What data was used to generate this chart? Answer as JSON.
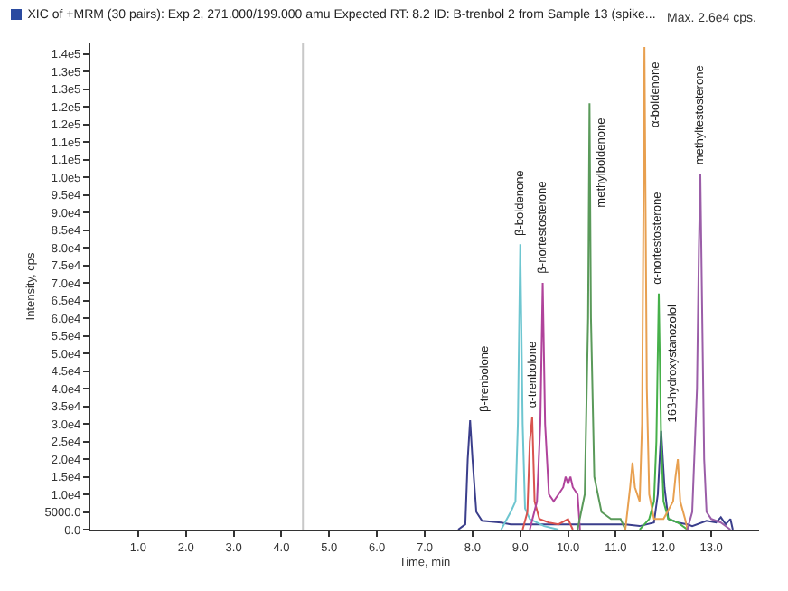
{
  "chart_data": {
    "type": "line",
    "title": "XIC of +MRM (30 pairs): Exp 2, 271.000/199.000 amu Expected RT: 8.2 ID: B-trenbol 2 from Sample 13 (spike...",
    "xlabel": "Time, min",
    "ylabel": "Intensity, cps",
    "xlim": [
      0,
      14
    ],
    "ylim": [
      0,
      138000
    ],
    "xticks": [
      {
        "value": 1,
        "label": "1.0"
      },
      {
        "value": 2,
        "label": "2.0"
      },
      {
        "value": 3,
        "label": "3.0"
      },
      {
        "value": 4,
        "label": "4.0"
      },
      {
        "value": 5,
        "label": "5.0"
      },
      {
        "value": 6,
        "label": "6.0"
      },
      {
        "value": 7,
        "label": "7.0"
      },
      {
        "value": 8,
        "label": "8.0"
      },
      {
        "value": 9,
        "label": "9.0"
      },
      {
        "value": 10,
        "label": "10.0"
      },
      {
        "value": 11,
        "label": "11.0"
      },
      {
        "value": 12,
        "label": "12.0"
      },
      {
        "value": 13,
        "label": "13.0"
      }
    ],
    "yticks": [
      {
        "value": 0,
        "label": "0.0"
      },
      {
        "value": 5000,
        "label": "5000.0"
      },
      {
        "value": 10000,
        "label": "1.0e4"
      },
      {
        "value": 15000,
        "label": "1.5e4"
      },
      {
        "value": 20000,
        "label": "2.0e4"
      },
      {
        "value": 25000,
        "label": "2.5e4"
      },
      {
        "value": 30000,
        "label": "3.0e4"
      },
      {
        "value": 35000,
        "label": "3.5e4"
      },
      {
        "value": 40000,
        "label": "4.0e4"
      },
      {
        "value": 45000,
        "label": "4.5e4"
      },
      {
        "value": 50000,
        "label": "5.0e4"
      },
      {
        "value": 55000,
        "label": "5.5e4"
      },
      {
        "value": 60000,
        "label": "6.0e4"
      },
      {
        "value": 65000,
        "label": "6.5e4"
      },
      {
        "value": 70000,
        "label": "7.0e4"
      },
      {
        "value": 75000,
        "label": "7.5e4"
      },
      {
        "value": 80000,
        "label": "8.0e4"
      },
      {
        "value": 85000,
        "label": "8.5e4"
      },
      {
        "value": 90000,
        "label": "9.0e4"
      },
      {
        "value": 95000,
        "label": "9.5e4"
      },
      {
        "value": 100000,
        "label": "1.0e5"
      },
      {
        "value": 105000,
        "label": "1.1e5"
      },
      {
        "value": 110000,
        "label": "1.1e5"
      },
      {
        "value": 115000,
        "label": "1.2e5"
      },
      {
        "value": 120000,
        "label": "1.2e5"
      },
      {
        "value": 125000,
        "label": "1.3e5"
      },
      {
        "value": 130000,
        "label": "1.3e5"
      },
      {
        "value": 135000,
        "label": "1.4e5"
      }
    ],
    "grid": false,
    "marker": "none",
    "line_style": "solid",
    "series": [
      {
        "color": "#3b3f8c",
        "x": [
          7.7,
          7.85,
          7.9,
          7.95,
          8.0,
          8.08,
          8.2,
          8.6,
          8.8,
          9.0,
          9.6,
          10.2,
          10.6,
          11.0,
          11.2,
          11.5,
          11.8,
          11.88,
          11.95,
          12.02,
          12.1,
          12.3,
          12.5,
          12.6,
          12.9,
          13.1,
          13.2,
          13.3,
          13.4,
          13.45
        ],
        "values": [
          0,
          1500,
          20000,
          31000,
          20000,
          5000,
          2500,
          2000,
          1500,
          1500,
          1500,
          1500,
          1500,
          1500,
          1500,
          1000,
          2000,
          10000,
          28000,
          12000,
          3000,
          2000,
          1500,
          1000,
          2500,
          2000,
          3500,
          1500,
          3000,
          0
        ]
      },
      {
        "color": "#6ec6d0",
        "x": [
          8.6,
          8.8,
          8.9,
          8.95,
          9.0,
          9.05,
          9.1,
          9.2,
          9.5,
          9.8
        ],
        "values": [
          0,
          5000,
          8000,
          30000,
          81000,
          30000,
          6000,
          3000,
          1000,
          0
        ]
      },
      {
        "color": "#d9534f",
        "x": [
          9.05,
          9.15,
          9.2,
          9.25,
          9.3,
          9.4,
          9.6,
          9.8,
          10.0,
          10.1
        ],
        "values": [
          0,
          5000,
          25000,
          32000,
          8000,
          3000,
          2000,
          1500,
          3000,
          0
        ]
      },
      {
        "color": "#b0439b",
        "x": [
          9.2,
          9.35,
          9.42,
          9.47,
          9.52,
          9.6,
          9.7,
          9.8,
          9.9,
          9.95,
          10.0,
          10.05,
          10.1,
          10.2,
          10.25
        ],
        "values": [
          0,
          8000,
          30000,
          70000,
          30000,
          10000,
          8000,
          10000,
          12000,
          15000,
          13000,
          15000,
          12000,
          10000,
          0
        ]
      },
      {
        "color": "#5a9a5a",
        "x": [
          10.2,
          10.35,
          10.42,
          10.45,
          10.48,
          10.55,
          10.7,
          10.9,
          11.1,
          11.2
        ],
        "values": [
          0,
          10000,
          60000,
          121000,
          60000,
          15000,
          5000,
          3000,
          3000,
          0
        ]
      },
      {
        "color": "#46b04a",
        "x": [
          11.5,
          11.7,
          11.8,
          11.85,
          11.9,
          11.95,
          12.0,
          12.1,
          12.3,
          12.5
        ],
        "values": [
          0,
          3000,
          8000,
          25000,
          67000,
          25000,
          8000,
          3000,
          2000,
          0
        ]
      },
      {
        "color": "#e8a050",
        "x": [
          11.2,
          11.3,
          11.35,
          11.4,
          11.5,
          11.55,
          11.6,
          11.65,
          11.7,
          11.8,
          12.0,
          12.2,
          12.25,
          12.3,
          12.35,
          12.45,
          12.5
        ],
        "values": [
          0,
          12000,
          19000,
          12000,
          8000,
          30000,
          137000,
          40000,
          10000,
          3000,
          3000,
          8000,
          15000,
          20000,
          8000,
          3000,
          0
        ]
      },
      {
        "color": "#9b5ea8",
        "x": [
          12.5,
          12.6,
          12.7,
          12.74,
          12.77,
          12.8,
          12.85,
          12.9,
          13.0,
          13.2,
          13.4
        ],
        "values": [
          0,
          5000,
          40000,
          80000,
          101000,
          70000,
          20000,
          5000,
          3000,
          2000,
          0
        ]
      }
    ],
    "ref_lines": [
      {
        "axis": "x",
        "value": 4.45,
        "color": "#c8c8c8"
      }
    ],
    "annotations": [
      {
        "text": "β-trenbolone",
        "x": 8.0,
        "y": 31000
      },
      {
        "text": "β-boldenone",
        "x": 9.0,
        "y": 81000
      },
      {
        "text": "α-trenbolone",
        "x": 9.25,
        "y": 32000
      },
      {
        "text": "β-nortestosterone",
        "x": 9.47,
        "y": 70000
      },
      {
        "text": "methylboldenone",
        "x": 10.45,
        "y": 121000
      },
      {
        "text": "α-boldenone",
        "x": 11.6,
        "y": 137000
      },
      {
        "text": "α-nortestosterone",
        "x": 11.9,
        "y": 67000
      },
      {
        "text": "16β-hydroxystanozolol",
        "x": 11.95,
        "y": 28000
      },
      {
        "text": "methyltestosterone",
        "x": 12.77,
        "y": 101000
      },
      "Max. 2.6e4 cps."
    ]
  }
}
